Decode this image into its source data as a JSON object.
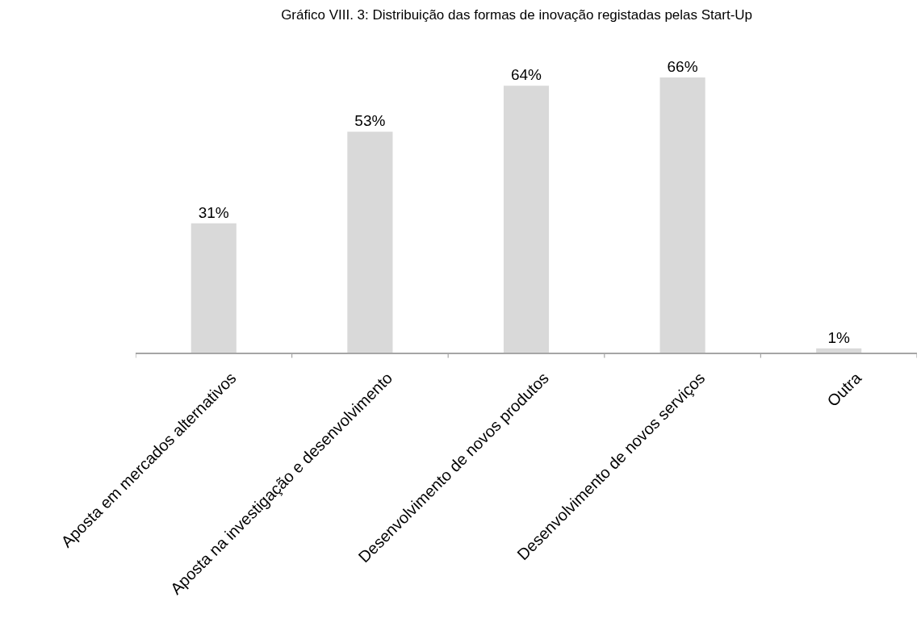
{
  "chart_data": {
    "type": "bar",
    "title": "Gráfico VIII. 3: Distribuição das formas de inovação registadas pelas Start-Up",
    "categories": [
      "Aposta em mercados alternativos",
      "Aposta na investigação e desenvolvimento",
      "Desenvolvimento de novos produtos",
      "Desenvolvimento de novos serviços",
      "Outra"
    ],
    "values": [
      31,
      53,
      64,
      66,
      1
    ],
    "value_labels": [
      "31%",
      "53%",
      "64%",
      "66%",
      "1%"
    ],
    "color": "#d9d9d9",
    "tick_labels": "x",
    "grid": false,
    "legend": false
  }
}
